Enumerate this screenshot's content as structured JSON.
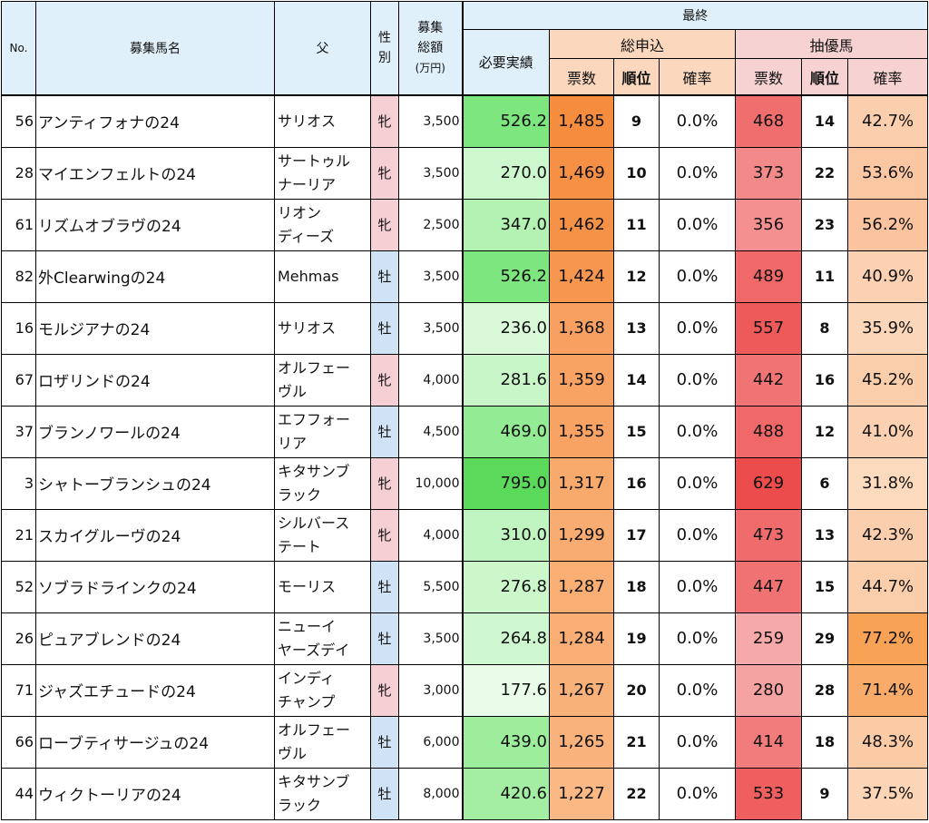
{
  "headers": {
    "no": "No.",
    "name": "募集馬名",
    "sire": "父",
    "sex": "性別",
    "amount_line1": "募集",
    "amount_line2": "総額",
    "amount_unit": "(万円)",
    "final": "最終",
    "required": "必要実績",
    "total_group": "総申込",
    "priority_group": "抽優馬",
    "votes": "票数",
    "rank": "順位",
    "probability": "確率"
  },
  "colors": {
    "header_bg": "#dff0fa",
    "peach_header": "#fbd8bd",
    "pink_header": "#f7d2d2",
    "female_bg": "#f6cfd4",
    "male_bg": "#cfe3f5"
  },
  "rows": [
    {
      "no": "56",
      "name": "アンティフォナの24",
      "sire": [
        "サリオス"
      ],
      "sex": "牝",
      "amount": "3,500",
      "required": "526.2",
      "req_bg": "#7ee67e",
      "total_votes": "1,485",
      "total_bg": "#f58c3e",
      "total_rank": "9",
      "total_prob": "0.0%",
      "pri_votes": "468",
      "pri_bg": "#f06e6e",
      "pri_rank": "14",
      "pri_prob": "42.7%",
      "prob_bg": "#fbcfae"
    },
    {
      "no": "28",
      "name": "マイエンフェルトの24",
      "sire": [
        "サートゥル",
        "ナーリア"
      ],
      "sex": "牝",
      "amount": "3,500",
      "required": "270.0",
      "req_bg": "#cdf7cd",
      "total_votes": "1,469",
      "total_bg": "#f69045",
      "total_rank": "10",
      "total_prob": "0.0%",
      "pri_votes": "373",
      "pri_bg": "#f38a8a",
      "pri_rank": "22",
      "pri_prob": "53.6%",
      "prob_bg": "#fbc7a3"
    },
    {
      "no": "61",
      "name": "リズムオブラヴの24",
      "sire": [
        "リオン",
        "ディーズ"
      ],
      "sex": "牝",
      "amount": "2,500",
      "required": "347.0",
      "req_bg": "#b4f2b4",
      "total_votes": "1,462",
      "total_bg": "#f69247",
      "total_rank": "11",
      "total_prob": "0.0%",
      "pri_votes": "356",
      "pri_bg": "#f49090",
      "pri_rank": "23",
      "pri_prob": "56.2%",
      "prob_bg": "#fbc49f"
    },
    {
      "no": "82",
      "name": "外Clearwingの24",
      "sire": [
        "Mehmas"
      ],
      "sex": "牡",
      "amount": "3,500",
      "required": "526.2",
      "req_bg": "#7ee67e",
      "total_votes": "1,424",
      "total_bg": "#f7974f",
      "total_rank": "12",
      "total_prob": "0.0%",
      "pri_votes": "489",
      "pri_bg": "#f06868",
      "pri_rank": "11",
      "pri_prob": "40.9%",
      "prob_bg": "#fcd1b1"
    },
    {
      "no": "16",
      "name": "モルジアナの24",
      "sire": [
        "サリオス"
      ],
      "sex": "牡",
      "amount": "3,500",
      "required": "236.0",
      "req_bg": "#d9f9d9",
      "total_votes": "1,368",
      "total_bg": "#f8a061",
      "total_rank": "13",
      "total_prob": "0.0%",
      "pri_votes": "557",
      "pri_bg": "#ee5a5a",
      "pri_rank": "8",
      "pri_prob": "35.9%",
      "prob_bg": "#fcd6b9"
    },
    {
      "no": "67",
      "name": "ロザリンドの24",
      "sire": [
        "オルフェー",
        "ヴル"
      ],
      "sex": "牝",
      "amount": "4,000",
      "required": "281.6",
      "req_bg": "#c9f6c9",
      "total_votes": "1,359",
      "total_bg": "#f8a263",
      "total_rank": "14",
      "total_prob": "0.0%",
      "pri_votes": "442",
      "pri_bg": "#f17474",
      "pri_rank": "16",
      "pri_prob": "45.2%",
      "prob_bg": "#fbceab"
    },
    {
      "no": "37",
      "name": "ブランノワールの24",
      "sire": [
        "エフフォー",
        "リア"
      ],
      "sex": "牡",
      "amount": "4,500",
      "required": "469.0",
      "req_bg": "#93eb93",
      "total_votes": "1,355",
      "total_bg": "#f8a264",
      "total_rank": "15",
      "total_prob": "0.0%",
      "pri_votes": "488",
      "pri_bg": "#f06868",
      "pri_rank": "12",
      "pri_prob": "41.0%",
      "prob_bg": "#fcd1b1"
    },
    {
      "no": "3",
      "name": "シャトーブランシュの24",
      "sire": [
        "キタサンブ",
        "ラック"
      ],
      "sex": "牝",
      "amount": "10,000",
      "required": "795.0",
      "req_bg": "#5bd95b",
      "total_votes": "1,317",
      "total_bg": "#f8a96c",
      "total_rank": "16",
      "total_prob": "0.0%",
      "pri_votes": "629",
      "pri_bg": "#ed4c4c",
      "pri_rank": "6",
      "pri_prob": "31.8%",
      "prob_bg": "#fcdabe"
    },
    {
      "no": "21",
      "name": "スカイグルーヴの24",
      "sire": [
        "シルバース",
        "テート"
      ],
      "sex": "牝",
      "amount": "4,000",
      "required": "310.0",
      "req_bg": "#c0f4c0",
      "total_votes": "1,299",
      "total_bg": "#f9ac71",
      "total_rank": "17",
      "total_prob": "0.0%",
      "pri_votes": "473",
      "pri_bg": "#f06c6c",
      "pri_rank": "13",
      "pri_prob": "42.3%",
      "prob_bg": "#fbcfae"
    },
    {
      "no": "52",
      "name": "ソブラドラインクの24",
      "sire": [
        "モーリス"
      ],
      "sex": "牡",
      "amount": "5,500",
      "required": "276.8",
      "req_bg": "#cbf7cb",
      "total_votes": "1,287",
      "total_bg": "#f9ae74",
      "total_rank": "18",
      "total_prob": "0.0%",
      "pri_votes": "447",
      "pri_bg": "#f17272",
      "pri_rank": "15",
      "pri_prob": "44.7%",
      "prob_bg": "#fbceab"
    },
    {
      "no": "26",
      "name": "ピュアブレンドの24",
      "sire": [
        "ニューイ",
        "ヤーズデイ"
      ],
      "sex": "牡",
      "amount": "3,500",
      "required": "264.8",
      "req_bg": "#cff7cf",
      "total_votes": "1,284",
      "total_bg": "#f9ae75",
      "total_rank": "19",
      "total_prob": "0.0%",
      "pri_votes": "259",
      "pri_bg": "#f6a9a9",
      "pri_rank": "29",
      "pri_prob": "77.2%",
      "prob_bg": "#f8a255"
    },
    {
      "no": "71",
      "name": "ジャズエチュードの24",
      "sire": [
        "インディ",
        "チャンプ"
      ],
      "sex": "牝",
      "amount": "3,000",
      "required": "177.6",
      "req_bg": "#e9fce9",
      "total_votes": "1,267",
      "total_bg": "#f9b17a",
      "total_rank": "20",
      "total_prob": "0.0%",
      "pri_votes": "280",
      "pri_bg": "#f5a2a2",
      "pri_rank": "28",
      "pri_prob": "71.4%",
      "prob_bg": "#f9ac6a"
    },
    {
      "no": "66",
      "name": "ローブティサージュの24",
      "sire": [
        "オルフェー",
        "ヴル"
      ],
      "sex": "牡",
      "amount": "6,000",
      "required": "439.0",
      "req_bg": "#9ded9d",
      "total_votes": "1,265",
      "total_bg": "#f9b27b",
      "total_rank": "21",
      "total_prob": "0.0%",
      "pri_votes": "414",
      "pri_bg": "#f27c7c",
      "pri_rank": "18",
      "pri_prob": "48.3%",
      "prob_bg": "#fbcba6"
    },
    {
      "no": "44",
      "name": "ウィクトーリアの24",
      "sire": [
        "キタサンブ",
        "ラック"
      ],
      "sex": "牡",
      "amount": "8,000",
      "required": "420.6",
      "req_bg": "#a3ee a3",
      "total_votes": "1,227",
      "total_bg": "#fab884",
      "total_rank": "22",
      "total_prob": "0.0%",
      "pri_votes": "533",
      "pri_bg": "#ef5f5f",
      "pri_rank": "9",
      "pri_prob": "37.5%",
      "prob_bg": "#fcd4b6"
    }
  ]
}
